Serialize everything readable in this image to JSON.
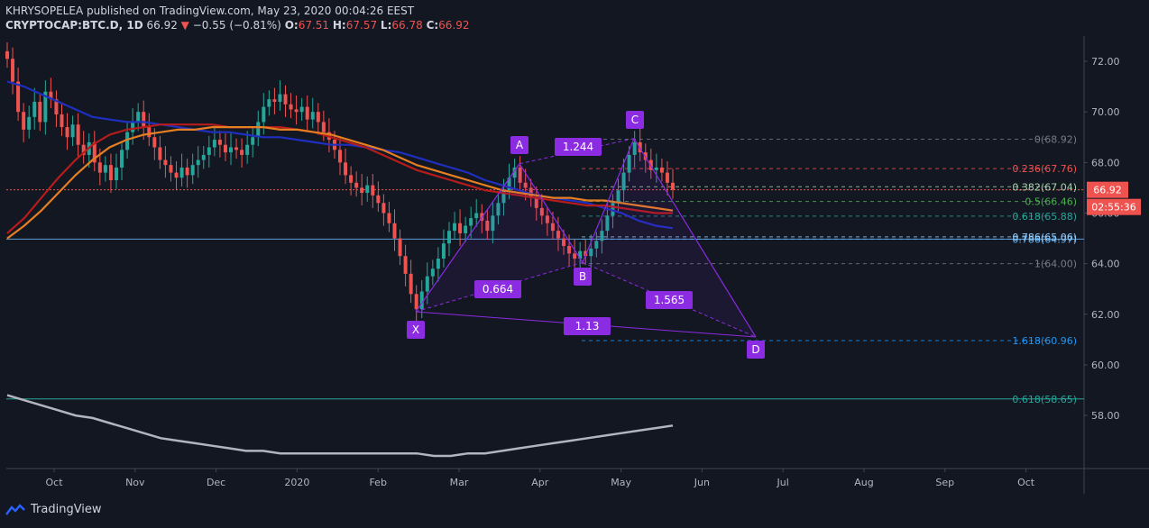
{
  "header": {
    "publisher_line": "KHRYSOPELEA published on TradingView.com, May 23, 2020 00:04:26 EEST",
    "symbol": "CRYPTOCAP:BTC.D, 1D",
    "last": "66.92",
    "change": "−0.55 (−0.81%)",
    "ohlc": {
      "O": "67.51",
      "H": "67.57",
      "L": "66.78",
      "C": "66.92"
    }
  },
  "price_badge": {
    "value": "66.92",
    "countdown": "02:55:36",
    "color": "#ef5350"
  },
  "footer": {
    "brand": "TradingView"
  },
  "colors": {
    "background": "#131722",
    "up": "#26a69a",
    "down": "#ef5350",
    "pattern": "#8b2be2",
    "ma_blue": "#1f2fbf",
    "ma_red": "#b71c1c",
    "ma_orange": "#e67e22"
  },
  "chart_data": {
    "type": "candlestick",
    "y_axis": {
      "ticks": [
        72,
        70,
        68,
        66,
        64,
        62,
        60,
        58
      ],
      "tick_labels": [
        "72.00",
        "70.00",
        "68.00",
        "66.00",
        "64.00",
        "62.00",
        "60.00",
        "58.00"
      ],
      "range": [
        55.9,
        73
      ]
    },
    "x_axis": {
      "labels": [
        "Oct",
        "Nov",
        "Dec",
        "2020",
        "Feb",
        "Mar",
        "Apr",
        "May",
        "Jun",
        "Jul",
        "Aug",
        "Sep",
        "Oct"
      ]
    },
    "candles_close": [
      72.1,
      71.2,
      70.0,
      69.3,
      69.8,
      70.4,
      69.6,
      70.8,
      70.5,
      69.9,
      69.4,
      69.0,
      69.5,
      68.7,
      68.3,
      68.8,
      68.0,
      67.6,
      67.9,
      67.3,
      67.8,
      68.5,
      69.2,
      69.6,
      70.0,
      69.4,
      69.0,
      68.6,
      68.1,
      67.9,
      67.6,
      67.4,
      67.8,
      67.5,
      67.9,
      68.1,
      68.3,
      68.6,
      68.9,
      68.7,
      68.4,
      68.6,
      68.5,
      68.3,
      68.7,
      69.0,
      69.6,
      70.2,
      70.5,
      70.4,
      70.7,
      70.3,
      70.1,
      70.0,
      70.2,
      69.7,
      70.0,
      69.6,
      69.2,
      68.9,
      68.5,
      68.0,
      67.5,
      67.2,
      67.0,
      66.8,
      67.1,
      66.7,
      66.4,
      66.0,
      65.6,
      65.0,
      64.3,
      63.6,
      62.8,
      62.2,
      62.9,
      63.5,
      63.8,
      64.2,
      64.8,
      65.3,
      65.6,
      65.2,
      65.5,
      65.8,
      66.0,
      65.7,
      65.3,
      65.9,
      66.4,
      66.9,
      67.4,
      67.8,
      67.2,
      67.0,
      66.6,
      66.2,
      65.9,
      65.6,
      65.3,
      65.0,
      64.7,
      64.4,
      64.2,
      64.5,
      64.3,
      64.6,
      64.9,
      65.3,
      65.9,
      66.4,
      66.9,
      67.6,
      68.3,
      68.8,
      68.4,
      68.1,
      67.7,
      67.8,
      67.6,
      67.2,
      66.92
    ],
    "pattern_points": [
      {
        "label": "X",
        "value": 62.1
      },
      {
        "label": "A",
        "value": 67.95
      },
      {
        "label": "B",
        "value": 64.05
      },
      {
        "label": "C",
        "value": 68.95
      },
      {
        "label": "D",
        "value": 61.1
      }
    ],
    "pattern_ratios": [
      "0.664",
      "1.244",
      "1.565",
      "1.13"
    ],
    "fib_levels": [
      {
        "label": "0(68.92)",
        "value": 68.92,
        "color": "#787b86"
      },
      {
        "label": "0.236(67.76)",
        "value": 67.76,
        "color": "#ef5350"
      },
      {
        "label": "0.382(67.04)",
        "value": 67.04,
        "color": "#a5d6a7"
      },
      {
        "label": "0.5(66.46)",
        "value": 66.46,
        "color": "#4caf50"
      },
      {
        "label": "0.618(65.88)",
        "value": 65.88,
        "color": "#26a69a"
      },
      {
        "label": "0.786(64.97)",
        "value": 64.97,
        "color": "#64b5f6"
      },
      {
        "label": "0.786(65.06)",
        "value": 65.06,
        "color": "#90caf9"
      },
      {
        "label": "1(64.00)",
        "value": 64.0,
        "color": "#787b86"
      },
      {
        "label": "1.618(60.96)",
        "value": 60.96,
        "color": "#2196f3"
      },
      {
        "label": "0.618(58.65)",
        "value": 58.65,
        "color": "#26a69a"
      }
    ],
    "horizontal_lines": [
      {
        "value": 66.92,
        "color": "#ef5350",
        "style": "dotted"
      },
      {
        "value": 64.97,
        "color": "#5b9bd5",
        "style": "solid"
      },
      {
        "value": 58.65,
        "color": "#26a69a",
        "style": "solid"
      }
    ],
    "moving_averages": [
      {
        "color": "#1f2fbf",
        "values": [
          71.2,
          71.0,
          70.7,
          70.4,
          70.1,
          69.8,
          69.7,
          69.6,
          69.6,
          69.5,
          69.4,
          69.3,
          69.2,
          69.2,
          69.1,
          69.0,
          69.0,
          68.9,
          68.8,
          68.7,
          68.7,
          68.6,
          68.5,
          68.4,
          68.2,
          68.0,
          67.8,
          67.6,
          67.3,
          67.1,
          66.9,
          66.7,
          66.6,
          66.5,
          66.4,
          66.2,
          66.0,
          65.7,
          65.5,
          65.4
        ]
      },
      {
        "color": "#b71c1c",
        "values": [
          65.2,
          65.8,
          66.6,
          67.4,
          68.1,
          68.7,
          69.1,
          69.3,
          69.4,
          69.5,
          69.5,
          69.5,
          69.5,
          69.4,
          69.4,
          69.4,
          69.4,
          69.3,
          69.2,
          69.0,
          68.8,
          68.6,
          68.3,
          68.0,
          67.7,
          67.5,
          67.3,
          67.1,
          66.9,
          66.8,
          66.7,
          66.6,
          66.5,
          66.4,
          66.3,
          66.3,
          66.2,
          66.1,
          66.0,
          66.0
        ]
      },
      {
        "color": "#e67e22",
        "values": [
          65.0,
          65.5,
          66.1,
          66.8,
          67.5,
          68.1,
          68.6,
          68.9,
          69.1,
          69.2,
          69.3,
          69.3,
          69.4,
          69.4,
          69.4,
          69.4,
          69.3,
          69.3,
          69.2,
          69.1,
          68.9,
          68.7,
          68.5,
          68.2,
          67.9,
          67.7,
          67.5,
          67.3,
          67.1,
          66.9,
          66.8,
          66.7,
          66.6,
          66.6,
          66.5,
          66.5,
          66.4,
          66.3,
          66.2,
          66.1
        ]
      },
      {
        "color": "#b2b5be",
        "values": [
          58.8,
          58.6,
          58.4,
          58.2,
          58.0,
          57.9,
          57.7,
          57.5,
          57.3,
          57.1,
          57.0,
          56.9,
          56.8,
          56.7,
          56.6,
          56.6,
          56.5,
          56.5,
          56.5,
          56.5,
          56.5,
          56.5,
          56.5,
          56.5,
          56.5,
          56.4,
          56.4,
          56.5,
          56.5,
          56.6,
          56.7,
          56.8,
          56.9,
          57.0,
          57.1,
          57.2,
          57.3,
          57.4,
          57.5,
          57.6
        ]
      }
    ]
  }
}
